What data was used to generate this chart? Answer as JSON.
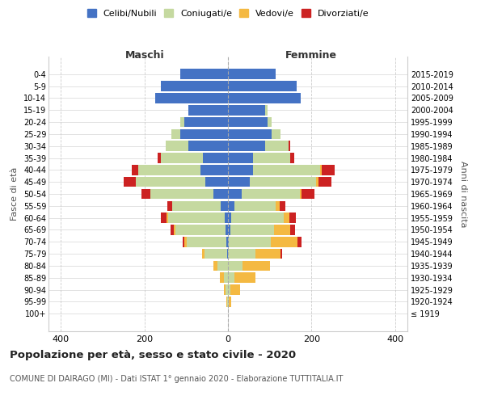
{
  "age_groups": [
    "100+",
    "95-99",
    "90-94",
    "85-89",
    "80-84",
    "75-79",
    "70-74",
    "65-69",
    "60-64",
    "55-59",
    "50-54",
    "45-49",
    "40-44",
    "35-39",
    "30-34",
    "25-29",
    "20-24",
    "15-19",
    "10-14",
    "5-9",
    "0-4"
  ],
  "birth_years": [
    "≤ 1919",
    "1920-1924",
    "1925-1929",
    "1930-1934",
    "1935-1939",
    "1940-1944",
    "1945-1949",
    "1950-1954",
    "1955-1959",
    "1960-1964",
    "1965-1969",
    "1970-1974",
    "1975-1979",
    "1980-1984",
    "1985-1989",
    "1990-1994",
    "1995-1999",
    "2000-2004",
    "2005-2009",
    "2010-2014",
    "2015-2019"
  ],
  "males": {
    "celibi": [
      0,
      0,
      0,
      0,
      0,
      2,
      4,
      5,
      8,
      18,
      35,
      55,
      65,
      60,
      95,
      115,
      105,
      95,
      175,
      160,
      115
    ],
    "coniugati": [
      0,
      2,
      5,
      10,
      25,
      55,
      95,
      120,
      135,
      115,
      150,
      165,
      150,
      100,
      55,
      20,
      10,
      0,
      0,
      0,
      0
    ],
    "vedovi": [
      0,
      2,
      5,
      10,
      10,
      5,
      5,
      5,
      5,
      0,
      0,
      0,
      0,
      0,
      0,
      0,
      0,
      0,
      0,
      0,
      0
    ],
    "divorziati": [
      0,
      0,
      0,
      0,
      0,
      0,
      5,
      8,
      12,
      12,
      22,
      30,
      15,
      8,
      0,
      0,
      0,
      0,
      0,
      0,
      0
    ]
  },
  "females": {
    "nubili": [
      0,
      0,
      0,
      0,
      0,
      0,
      2,
      5,
      8,
      15,
      32,
      52,
      60,
      60,
      90,
      105,
      95,
      90,
      175,
      165,
      115
    ],
    "coniugate": [
      0,
      2,
      5,
      15,
      35,
      65,
      100,
      105,
      125,
      100,
      140,
      160,
      160,
      90,
      55,
      20,
      10,
      5,
      0,
      0,
      0
    ],
    "vedove": [
      0,
      5,
      25,
      50,
      65,
      60,
      65,
      40,
      15,
      8,
      5,
      5,
      5,
      0,
      0,
      0,
      0,
      0,
      0,
      0,
      0
    ],
    "divorziate": [
      0,
      0,
      0,
      0,
      0,
      5,
      10,
      10,
      15,
      15,
      30,
      30,
      30,
      8,
      5,
      0,
      0,
      0,
      0,
      0,
      0
    ]
  },
  "colors": {
    "celibi": "#4472c4",
    "coniugati": "#c5d9a0",
    "vedovi": "#f4b942",
    "divorziati": "#cc2222"
  },
  "xlim": 430,
  "title": "Popolazione per età, sesso e stato civile - 2020",
  "subtitle": "COMUNE DI DAIRAGO (MI) - Dati ISTAT 1° gennaio 2020 - Elaborazione TUTTITALIA.IT",
  "legend_labels": [
    "Celibi/Nubili",
    "Coniugati/e",
    "Vedovi/e",
    "Divorziati/e"
  ]
}
